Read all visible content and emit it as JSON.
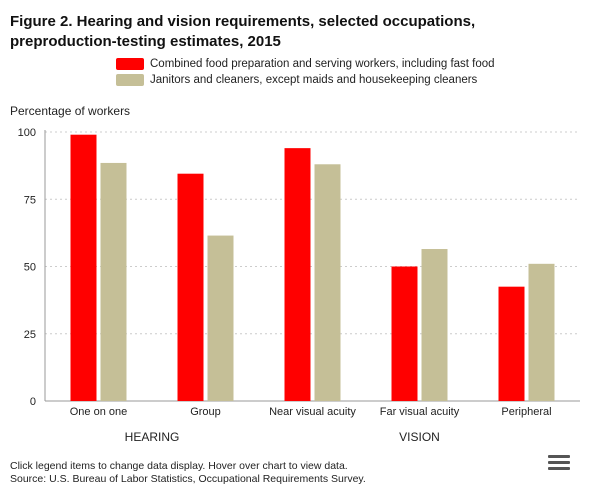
{
  "title_line1": "Figure 2. Hearing and vision requirements, selected occupations,",
  "title_line2": "preproduction-testing estimates, 2015",
  "footer": {
    "note": "Click legend items to change data display. Hover over chart to view data.",
    "source": "Source: U.S. Bureau of Labor Statistics, Occupational Requirements Survey."
  },
  "chart_data": {
    "type": "bar",
    "ylabel": "Percentage of workers",
    "ylim": [
      0,
      100
    ],
    "yticks": [
      0,
      25,
      50,
      75,
      100
    ],
    "categories": [
      "One on one",
      "Group",
      "Near visual acuity",
      "Far visual acuity",
      "Peripheral"
    ],
    "groups": [
      {
        "label": "HEARING",
        "categories": [
          "One on one",
          "Group"
        ]
      },
      {
        "label": "VISION",
        "categories": [
          "Near visual acuity",
          "Far visual acuity",
          "Peripheral"
        ]
      }
    ],
    "series": [
      {
        "name": "Combined food preparation and serving workers, including fast food",
        "color": "#ff0000",
        "values": [
          99,
          84.5,
          94,
          50,
          42.5
        ]
      },
      {
        "name": "Janitors and cleaners, except maids and housekeeping cleaners",
        "color": "#c5bf97",
        "values": [
          88.5,
          61.5,
          88,
          56.5,
          51
        ]
      }
    ]
  }
}
